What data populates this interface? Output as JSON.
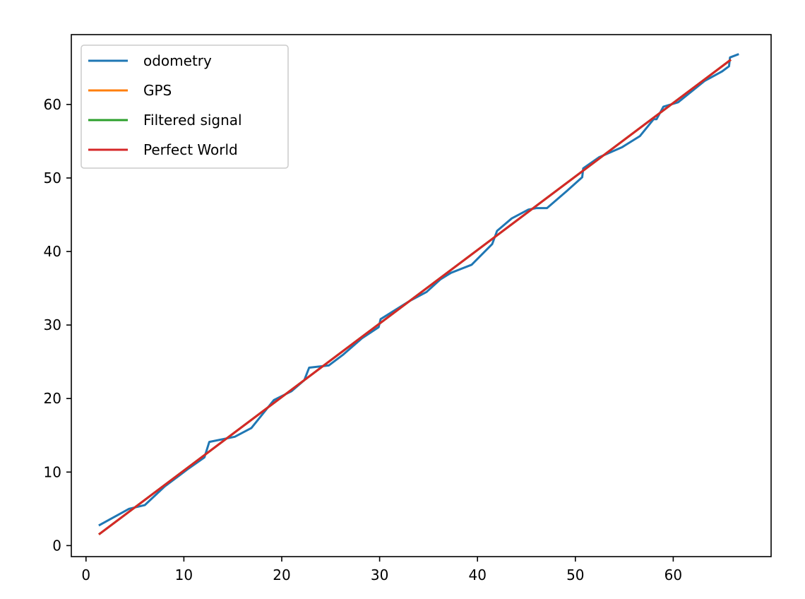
{
  "chart_data": {
    "type": "line",
    "title": "",
    "xlabel": "",
    "ylabel": "",
    "xlim": [
      -1.5,
      70
    ],
    "ylim": [
      -1.5,
      69.5
    ],
    "xticks": [
      0,
      10,
      20,
      30,
      40,
      50,
      60
    ],
    "yticks": [
      0,
      10,
      20,
      30,
      40,
      50,
      60
    ],
    "xtick_labels": [
      "0",
      "10",
      "20",
      "30",
      "40",
      "50",
      "60"
    ],
    "ytick_labels": [
      "0",
      "10",
      "20",
      "30",
      "40",
      "50",
      "60"
    ],
    "grid": false,
    "legend_position": "upper-left",
    "series": [
      {
        "name": "odometry",
        "color": "#1f77b4",
        "x": [
          1.4,
          4.4,
          6.0,
          8.0,
          10.5,
          12.1,
          12.6,
          15.2,
          16.9,
          19.2,
          21.0,
          22.3,
          22.8,
          24.8,
          26.3,
          28.2,
          29.9,
          30.1,
          33.1,
          34.8,
          36.2,
          37.3,
          39.4,
          41.5,
          42.0,
          43.5,
          45.2,
          46.0,
          47.1,
          49.1,
          50.7,
          50.8,
          52.4,
          54.8,
          56.6,
          58.0,
          58.3,
          59.0,
          60.5,
          63.2,
          65.0,
          65.7,
          65.8,
          66.6
        ],
        "y": [
          2.8,
          5.0,
          5.5,
          8.0,
          10.5,
          12.0,
          14.1,
          14.8,
          16.0,
          19.8,
          21.0,
          22.5,
          24.2,
          24.5,
          26.0,
          28.2,
          29.7,
          30.8,
          33.3,
          34.5,
          36.2,
          37.1,
          38.2,
          41.0,
          42.8,
          44.5,
          45.7,
          45.9,
          45.9,
          48.2,
          50.1,
          51.3,
          52.8,
          54.2,
          55.7,
          58.0,
          58.0,
          59.7,
          60.3,
          63.2,
          64.5,
          65.2,
          66.4,
          66.8
        ]
      },
      {
        "name": "GPS",
        "color": "#ff7f0e",
        "x": [
          1.4,
          65.8
        ],
        "y": [
          1.6,
          66.0
        ]
      },
      {
        "name": "Filtered signal",
        "color": "#2ca02c",
        "x": [
          1.4,
          65.8
        ],
        "y": [
          1.6,
          66.0
        ]
      },
      {
        "name": "Perfect World",
        "color": "#d62728",
        "x": [
          1.4,
          65.8
        ],
        "y": [
          1.6,
          66.0
        ]
      }
    ]
  }
}
